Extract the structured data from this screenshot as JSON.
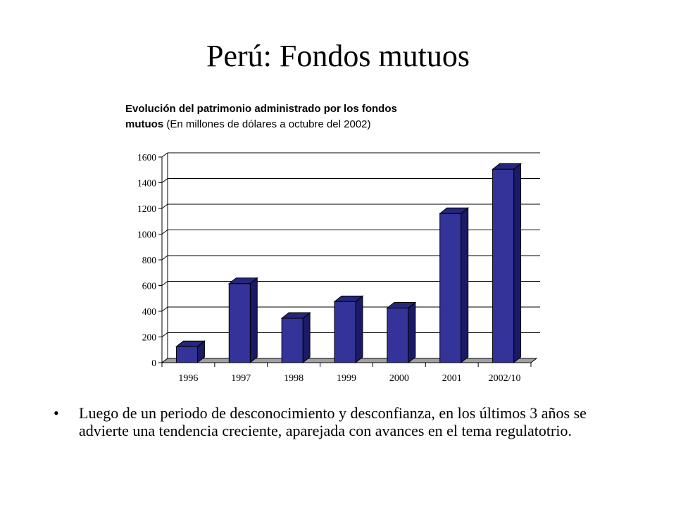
{
  "slide": {
    "title": "Perú: Fondos mutuos"
  },
  "chart_heading": {
    "line1_bold": "Evolución del patrimonio administrado por los fondos",
    "line2_bold": "mutuos",
    "line2_normal": " (En millones de dólares a octubre del 2002)"
  },
  "chart_data": {
    "type": "bar",
    "style": "3d-column",
    "categories": [
      "1996",
      "1997",
      "1998",
      "1999",
      "2000",
      "2001",
      "2002/10"
    ],
    "values": [
      125,
      615,
      345,
      475,
      425,
      1160,
      1505
    ],
    "ylim": [
      0,
      1600
    ],
    "yticks": [
      0,
      200,
      400,
      600,
      800,
      1000,
      1200,
      1400,
      1600
    ],
    "ytick_labels": [
      "0",
      "200",
      "400",
      "600",
      "800",
      "1000",
      "1200",
      "1400",
      "1600"
    ],
    "grid": true,
    "legend": "none",
    "colors": {
      "bar_front": "#333399",
      "bar_side": "#1a1a66",
      "bar_top": "#26267a",
      "floor": "#a0a0a0",
      "grid": "#000000"
    }
  },
  "bullets": [
    {
      "marker": "•",
      "text": "Luego de un periodo de desconocimiento y desconfianza, en los últimos 3 años se advierte una tendencia creciente, aparejada con avances en el tema regulatotrio."
    }
  ]
}
